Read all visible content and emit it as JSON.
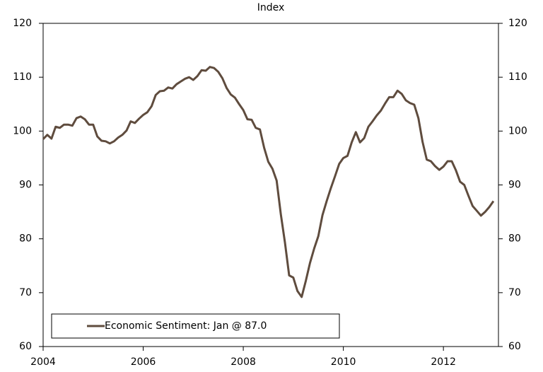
{
  "chart_data": {
    "type": "line",
    "title": "Index",
    "x": [
      2004,
      2004.083,
      2004.167,
      2004.25,
      2004.333,
      2004.417,
      2004.5,
      2004.583,
      2004.667,
      2004.75,
      2004.833,
      2004.917,
      2005,
      2005.083,
      2005.167,
      2005.25,
      2005.333,
      2005.417,
      2005.5,
      2005.583,
      2005.667,
      2005.75,
      2005.833,
      2005.917,
      2006,
      2006.083,
      2006.167,
      2006.25,
      2006.333,
      2006.417,
      2006.5,
      2006.583,
      2006.667,
      2006.75,
      2006.833,
      2006.917,
      2007,
      2007.083,
      2007.167,
      2007.25,
      2007.333,
      2007.417,
      2007.5,
      2007.583,
      2007.667,
      2007.75,
      2007.833,
      2007.917,
      2008,
      2008.083,
      2008.167,
      2008.25,
      2008.333,
      2008.417,
      2008.5,
      2008.583,
      2008.667,
      2008.75,
      2008.833,
      2008.917,
      2009,
      2009.083,
      2009.167,
      2009.25,
      2009.333,
      2009.417,
      2009.5,
      2009.583,
      2009.667,
      2009.75,
      2009.833,
      2009.917,
      2010,
      2010.083,
      2010.167,
      2010.25,
      2010.333,
      2010.417,
      2010.5,
      2010.583,
      2010.667,
      2010.75,
      2010.833,
      2010.917,
      2011,
      2011.083,
      2011.167,
      2011.25,
      2011.333,
      2011.417,
      2011.5,
      2011.583,
      2011.667,
      2011.75,
      2011.833,
      2011.917,
      2012,
      2012.083,
      2012.167,
      2012.25,
      2012.333,
      2012.417,
      2012.5,
      2012.583,
      2012.667,
      2012.75,
      2012.833,
      2012.917,
      2013
    ],
    "series": [
      {
        "name": "Economic Sentiment: Jan @ 87.0",
        "color": "#5f4c3e",
        "values": [
          98.5,
          99.3,
          98.6,
          100.8,
          100.6,
          101.2,
          101.2,
          101.0,
          102.4,
          102.7,
          102.2,
          101.2,
          101.2,
          99.0,
          98.2,
          98.1,
          97.7,
          98.1,
          98.8,
          99.3,
          100.1,
          101.8,
          101.5,
          102.3,
          103.0,
          103.5,
          104.6,
          106.7,
          107.4,
          107.5,
          108.1,
          107.9,
          108.7,
          109.2,
          109.7,
          110.0,
          109.5,
          110.2,
          111.3,
          111.2,
          111.9,
          111.7,
          111.0,
          109.8,
          108.0,
          106.8,
          106.2,
          105.0,
          103.9,
          102.2,
          102.1,
          100.6,
          100.3,
          96.9,
          94.3,
          93.0,
          90.8,
          84.6,
          79.3,
          73.2,
          72.8,
          70.3,
          69.2,
          72.2,
          75.5,
          78.2,
          80.5,
          84.4,
          87.0,
          89.4,
          91.6,
          93.9,
          95.0,
          95.4,
          97.9,
          99.8,
          97.9,
          98.7,
          100.8,
          101.8,
          102.9,
          103.8,
          105.1,
          106.3,
          106.3,
          107.5,
          106.9,
          105.7,
          105.2,
          104.9,
          102.4,
          98.0,
          94.7,
          94.4,
          93.5,
          92.8,
          93.4,
          94.4,
          94.4,
          92.7,
          90.6,
          90.0,
          88.0,
          86.1,
          85.2,
          84.3,
          85.0,
          85.9,
          87.0
        ]
      }
    ],
    "xlim": [
      2004,
      2013.1
    ],
    "xticks": [
      2004,
      2006,
      2008,
      2010,
      2012
    ],
    "ylim": [
      60,
      120
    ],
    "yticks": [
      60,
      70,
      80,
      90,
      100,
      110,
      120
    ],
    "y2lim": [
      60,
      120
    ],
    "y2ticks": [
      60,
      70,
      80,
      90,
      100,
      110,
      120
    ],
    "grid": false,
    "legend": "lower left"
  }
}
